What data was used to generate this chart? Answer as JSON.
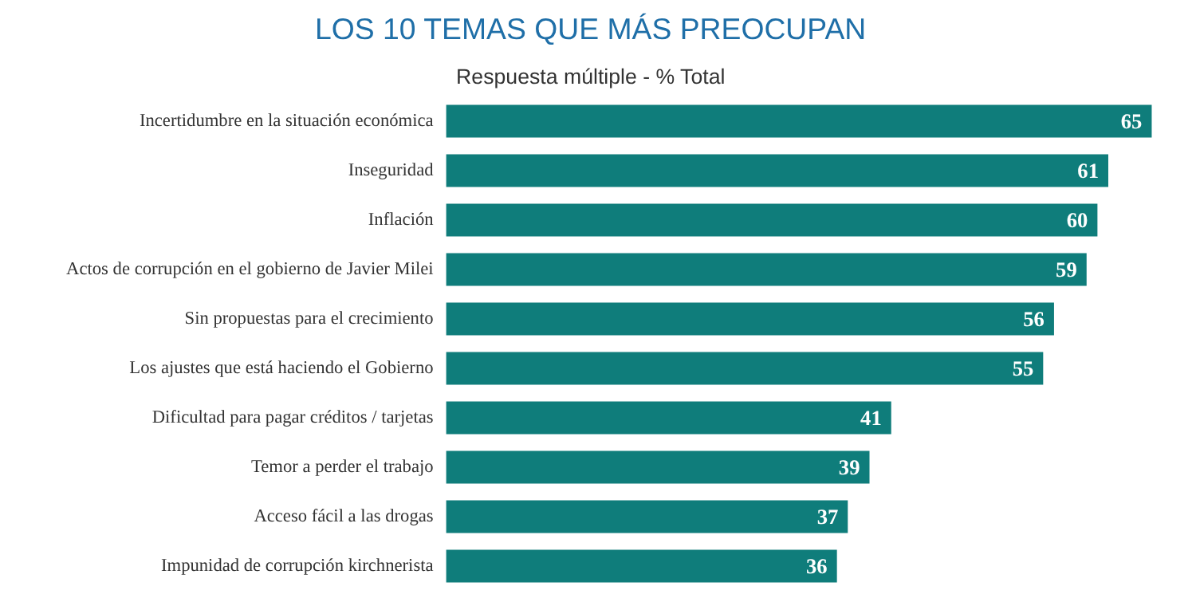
{
  "chart_data": {
    "type": "bar",
    "orientation": "horizontal",
    "title": "LOS 10 TEMAS QUE MÁS PREOCUPAN",
    "subtitle": "Respuesta múltiple - % Total",
    "categories": [
      "Incertidumbre en la situación económica",
      "Inseguridad",
      "Inflación",
      "Actos de corrupción en el gobierno de Javier Milei",
      "Sin propuestas para el crecimiento",
      "Los ajustes que está haciendo el Gobierno",
      "Dificultad para pagar créditos / tarjetas",
      "Temor a perder el trabajo",
      "Acceso fácil a las drogas",
      "Impunidad de corrupción kirchnerista"
    ],
    "values": [
      65,
      61,
      60,
      59,
      56,
      55,
      41,
      39,
      37,
      36
    ],
    "color": "#0f7d7b",
    "data_labels": true,
    "grid": false
  }
}
